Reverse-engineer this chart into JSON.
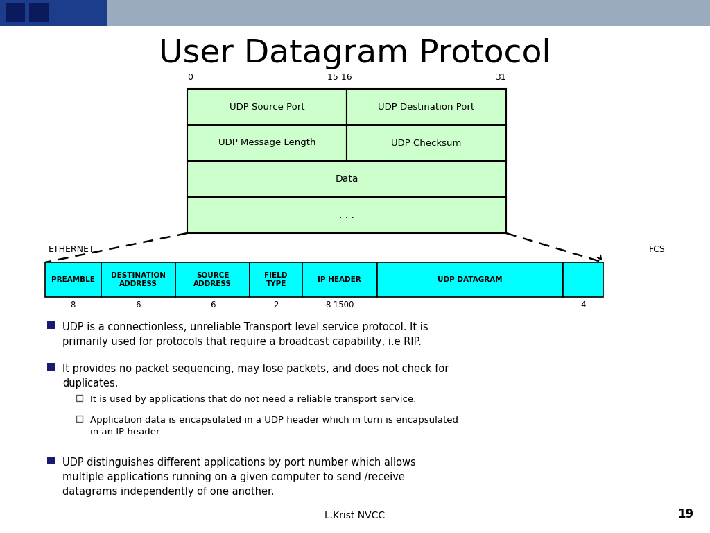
{
  "title": "User Datagram Protocol",
  "title_fontsize": 34,
  "bg_color": "#ffffff",
  "light_green": "#ccffcc",
  "cyan": "#00ffff",
  "bullet_color": "#1a1a6e",
  "text_color": "#000000",
  "bullet1": "UDP is a connectionless, unreliable Transport level service protocol. It is\nprimarily used for protocols that require a broadcast capability, i.e RIP.",
  "bullet2": "It provides no packet sequencing, may lose packets, and does not check for\nduplicates.",
  "sub1": "It is used by applications that do not need a reliable transport service.",
  "sub2": "Application data is encapsulated in a UDP header which in turn is encapsulated\nin an IP header.",
  "bullet3": "UDP distinguishes different applications by port number which allows\nmultiple applications running on a given computer to send /receive\ndatagrams independently of one another.",
  "footer": "L.Krist NVCC",
  "page_num": "19",
  "udp_rows": [
    [
      "UDP Source Port",
      "UDP Destination Port"
    ],
    [
      "UDP Message Length",
      "UDP Checksum"
    ],
    [
      "Data"
    ],
    [
      ". . ."
    ]
  ],
  "eth_labels": [
    "PREAMBLE",
    "DESTINATION\nADDRESS",
    "SOURCE\nADDRESS",
    "FIELD\nTYPE",
    "IP HEADER",
    "UDP DATAGRAM",
    ""
  ],
  "eth_nums": [
    "8",
    "6",
    "6",
    "2",
    "8-1500",
    "",
    "4"
  ],
  "eth_widths_rel": [
    0.9,
    1.2,
    1.2,
    0.85,
    1.2,
    3.0,
    0.65
  ],
  "ethernet_label": "ETHERNET",
  "fcs_label": "FCS"
}
